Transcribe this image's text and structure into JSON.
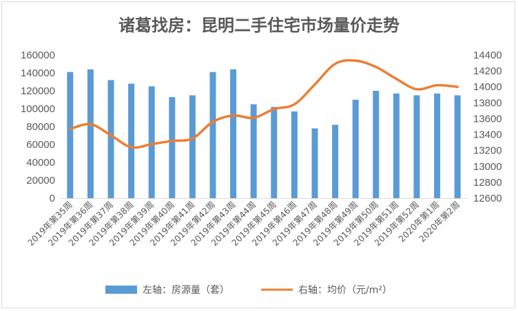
{
  "chart_data": {
    "type": "bar+line",
    "title": "诸葛找房：昆明二手住宅市场量价走势",
    "categories": [
      "2019年第35周",
      "2019年第36周",
      "2019年第37周",
      "2019年第38周",
      "2019年第39周",
      "2019年第40周",
      "2019年第41周",
      "2019年第42周",
      "2019年第43周",
      "2019年第44周",
      "2019年第45周",
      "2019年第46周",
      "2019年第47周",
      "2019年第48周",
      "2019年第49周",
      "2019年第50周",
      "2019年第51周",
      "2019年第52周",
      "2020年第1周",
      "2020年第2周"
    ],
    "series": [
      {
        "name": "左轴：房源量（套）",
        "type": "bar",
        "axis": "left",
        "color": "#5b9bd5",
        "values": [
          141000,
          144000,
          132000,
          128000,
          125000,
          113000,
          115000,
          141000,
          144000,
          105000,
          102000,
          97000,
          78000,
          82000,
          110000,
          120000,
          117000,
          115000,
          117000,
          115000
        ]
      },
      {
        "name": "右轴：均价（元/m²）",
        "type": "line",
        "axis": "right",
        "color": "#ed7d31",
        "values": [
          13470,
          13530,
          13390,
          13240,
          13280,
          13320,
          13350,
          13560,
          13640,
          13610,
          13720,
          13780,
          14030,
          14290,
          14330,
          14250,
          14100,
          13970,
          14020,
          14000
        ]
      }
    ],
    "left_axis": {
      "min": 0,
      "max": 160000,
      "step": 20000,
      "ticks": [
        "0",
        "20000",
        "40000",
        "60000",
        "80000",
        "100000",
        "120000",
        "140000",
        "160000"
      ]
    },
    "right_axis": {
      "min": 12600,
      "max": 14400,
      "step": 200,
      "ticks": [
        "12600",
        "12800",
        "13000",
        "13200",
        "13400",
        "13600",
        "13800",
        "14000",
        "14200",
        "14400"
      ]
    },
    "legend": [
      "左轴：房源量（套）",
      "右轴：均价（元/m²）"
    ],
    "legend_position": "bottom"
  }
}
